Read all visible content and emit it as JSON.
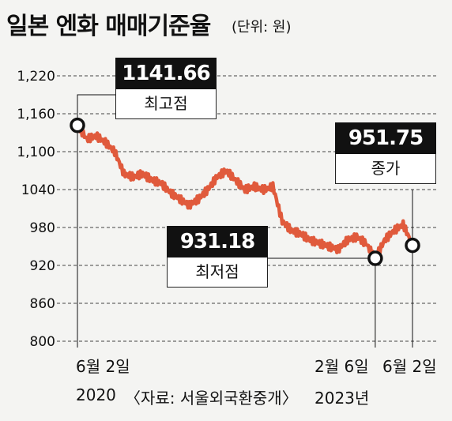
{
  "title": "일본 엔화 매매기준율",
  "unit": "(단위: 원)",
  "source": "〈자료: 서울외국환중개〉",
  "colors": {
    "line": "#e05a3c",
    "background": "#f4f4f2",
    "callout_dark": "#111111"
  },
  "annotations": {
    "high": {
      "value": "1141.66",
      "label": "최고점"
    },
    "low": {
      "value": "931.18",
      "label": "최저점"
    },
    "close": {
      "value": "951.75",
      "label": "종가"
    }
  },
  "x_labels": {
    "start_date": "6월 2일",
    "start_year": "2020",
    "low_date": "2월 6일",
    "end_date": "6월 2일",
    "end_year": "2023년"
  },
  "chart_data": {
    "type": "line",
    "title": "일본 엔화 매매기준율",
    "ylabel": "",
    "xlabel": "",
    "ylim": [
      800,
      1220
    ],
    "yticks": [
      800,
      860,
      920,
      980,
      1040,
      1100,
      1160,
      1220
    ],
    "ytick_labels": [
      "800",
      "860",
      "920",
      "980",
      "1040",
      "1,100",
      "1,160",
      "1,220"
    ],
    "grid": "horizontal dashed",
    "x": [
      "2020-06",
      "2020-07",
      "2020-08",
      "2020-09",
      "2020-10",
      "2020-11",
      "2020-12",
      "2021-01",
      "2021-02",
      "2021-03",
      "2021-04",
      "2021-05",
      "2021-06",
      "2021-07",
      "2021-08",
      "2021-09",
      "2021-10",
      "2021-11",
      "2021-12",
      "2022-01",
      "2022-02",
      "2022-03",
      "2022-04",
      "2022-05",
      "2022-06",
      "2022-07",
      "2022-08",
      "2022-09",
      "2022-10",
      "2022-11",
      "2022-12",
      "2023-01",
      "2023-02",
      "2023-03",
      "2023-04",
      "2023-05",
      "2023-06"
    ],
    "series": [
      {
        "values": [
          1141.66,
          1120,
          1125,
          1115,
          1100,
          1065,
          1060,
          1065,
          1055,
          1050,
          1035,
          1025,
          1015,
          1025,
          1040,
          1060,
          1070,
          1055,
          1040,
          1045,
          1040,
          1045,
          990,
          975,
          970,
          960,
          955,
          950,
          945,
          960,
          965,
          955,
          931.18,
          960,
          975,
          985,
          951.75
        ]
      }
    ]
  }
}
